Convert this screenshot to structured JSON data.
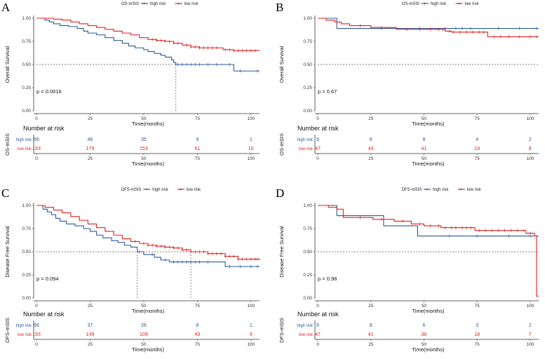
{
  "colors": {
    "high_risk": "#2b5a9a",
    "low_risk": "#e02020",
    "axis": "#333333",
    "reference": "#555555"
  },
  "shared": {
    "xlabel": "Time(months)",
    "risk_table_title": "Number at risk",
    "risk_table_times": [
      0,
      25,
      50,
      75,
      100
    ],
    "x_ticks": [
      0,
      25,
      50,
      75,
      100
    ],
    "y_ticks": [
      "0.00",
      "0.25",
      "0.50",
      "0.75",
      "1.00"
    ],
    "group_labels": [
      "high risk",
      "low risk"
    ]
  },
  "chart_data": [
    {
      "type": "line",
      "panel": "A",
      "legend_title": "OS-mSIS",
      "ylabel": "Overall Survival",
      "risk_ylabel": "OS-mSIS",
      "pvalue": "p = 0.0016",
      "xlim": [
        0,
        104
      ],
      "ylim": [
        0,
        1
      ],
      "median_lines": [
        65
      ],
      "series": [
        {
          "name": "high risk",
          "color": "#2b5a9a",
          "steps": [
            [
              0,
              1.0
            ],
            [
              4,
              0.98
            ],
            [
              6,
              0.96
            ],
            [
              8,
              0.94
            ],
            [
              11,
              0.92
            ],
            [
              15,
              0.91
            ],
            [
              19,
              0.89
            ],
            [
              22,
              0.86
            ],
            [
              24,
              0.84
            ],
            [
              28,
              0.82
            ],
            [
              32,
              0.79
            ],
            [
              36,
              0.76
            ],
            [
              40,
              0.73
            ],
            [
              43,
              0.7
            ],
            [
              46,
              0.68
            ],
            [
              50,
              0.66
            ],
            [
              52,
              0.64
            ],
            [
              55,
              0.62
            ],
            [
              58,
              0.6
            ],
            [
              60,
              0.58
            ],
            [
              63,
              0.55
            ],
            [
              64,
              0.52
            ],
            [
              65,
              0.5
            ],
            [
              92,
              0.43
            ],
            [
              104,
              0.43
            ]
          ],
          "censor": [
            66,
            68,
            70,
            72,
            74,
            76,
            80,
            84,
            90,
            95,
            103
          ]
        },
        {
          "name": "low risk",
          "color": "#e02020",
          "steps": [
            [
              0,
              1.0
            ],
            [
              8,
              0.99
            ],
            [
              12,
              0.98
            ],
            [
              16,
              0.96
            ],
            [
              20,
              0.94
            ],
            [
              24,
              0.92
            ],
            [
              28,
              0.9
            ],
            [
              32,
              0.88
            ],
            [
              36,
              0.86
            ],
            [
              40,
              0.84
            ],
            [
              44,
              0.82
            ],
            [
              48,
              0.79
            ],
            [
              52,
              0.77
            ],
            [
              56,
              0.76
            ],
            [
              60,
              0.75
            ],
            [
              64,
              0.73
            ],
            [
              68,
              0.71
            ],
            [
              72,
              0.69
            ],
            [
              76,
              0.68
            ],
            [
              82,
              0.68
            ],
            [
              87,
              0.66
            ],
            [
              92,
              0.65
            ],
            [
              104,
              0.65
            ]
          ],
          "censor": [
            54,
            56,
            58,
            60,
            62,
            64,
            66,
            70,
            72,
            74,
            76,
            78,
            80,
            82,
            84,
            88,
            90,
            92,
            94,
            96,
            98,
            100,
            102
          ]
        }
      ],
      "risk_table": {
        "high risk": [
          56,
          46,
          35,
          9,
          1
        ],
        "low risk": [
          193,
          179,
          153,
          61,
          10
        ]
      }
    },
    {
      "type": "line",
      "panel": "B",
      "legend_title": "OS-mSIS",
      "ylabel": "Overall Survival",
      "risk_ylabel": "OS-mSIS",
      "pvalue": "p = 0.67",
      "xlim": [
        0,
        104
      ],
      "ylim": [
        0,
        1
      ],
      "median_lines": [],
      "series": [
        {
          "name": "high risk",
          "color": "#2b5a9a",
          "steps": [
            [
              0,
              1.0
            ],
            [
              9,
              0.89
            ],
            [
              104,
              0.89
            ]
          ],
          "censor": [
            30,
            48,
            60,
            65,
            68,
            72,
            85,
            95,
            103
          ]
        },
        {
          "name": "low risk",
          "color": "#e02020",
          "steps": [
            [
              0,
              1.0
            ],
            [
              4,
              0.98
            ],
            [
              8,
              0.96
            ],
            [
              11,
              0.94
            ],
            [
              15,
              0.92
            ],
            [
              25,
              0.9
            ],
            [
              37,
              0.88
            ],
            [
              60,
              0.86
            ],
            [
              63,
              0.85
            ],
            [
              80,
              0.8
            ],
            [
              104,
              0.8
            ]
          ],
          "censor": [
            20,
            30,
            42,
            48,
            53,
            57,
            59,
            62,
            64,
            67,
            70,
            73,
            76,
            78,
            83,
            86,
            90,
            95,
            100,
            103
          ]
        }
      ],
      "risk_table": {
        "high risk": [
          9,
          8,
          8,
          4,
          2
        ],
        "low risk": [
          47,
          43,
          41,
          19,
          8
        ]
      }
    },
    {
      "type": "line",
      "panel": "C",
      "legend_title": "DFS-mSIS",
      "ylabel": "Disease Free Survival",
      "risk_ylabel": "DFS-mSIS",
      "pvalue": "p = 0.094",
      "xlim": [
        0,
        104
      ],
      "ylim": [
        0,
        1
      ],
      "median_lines": [
        47,
        72
      ],
      "series": [
        {
          "name": "high risk",
          "color": "#2b5a9a",
          "steps": [
            [
              0,
              1.0
            ],
            [
              3,
              0.96
            ],
            [
              5,
              0.93
            ],
            [
              7,
              0.9
            ],
            [
              9,
              0.86
            ],
            [
              11,
              0.83
            ],
            [
              14,
              0.8
            ],
            [
              18,
              0.78
            ],
            [
              22,
              0.75
            ],
            [
              25,
              0.72
            ],
            [
              28,
              0.68
            ],
            [
              31,
              0.65
            ],
            [
              35,
              0.62
            ],
            [
              38,
              0.6
            ],
            [
              41,
              0.57
            ],
            [
              44,
              0.55
            ],
            [
              47,
              0.5
            ],
            [
              50,
              0.47
            ],
            [
              55,
              0.44
            ],
            [
              58,
              0.41
            ],
            [
              62,
              0.39
            ],
            [
              88,
              0.34
            ],
            [
              104,
              0.34
            ]
          ],
          "censor": [
            48,
            54,
            60,
            64,
            66,
            68,
            70,
            72,
            74,
            76,
            80,
            90,
            95,
            100,
            103
          ]
        },
        {
          "name": "low risk",
          "color": "#e02020",
          "steps": [
            [
              0,
              1.0
            ],
            [
              4,
              0.98
            ],
            [
              8,
              0.95
            ],
            [
              12,
              0.92
            ],
            [
              16,
              0.88
            ],
            [
              20,
              0.84
            ],
            [
              24,
              0.8
            ],
            [
              28,
              0.76
            ],
            [
              32,
              0.72
            ],
            [
              36,
              0.68
            ],
            [
              40,
              0.64
            ],
            [
              44,
              0.61
            ],
            [
              48,
              0.59
            ],
            [
              52,
              0.57
            ],
            [
              56,
              0.56
            ],
            [
              60,
              0.55
            ],
            [
              64,
              0.54
            ],
            [
              68,
              0.52
            ],
            [
              72,
              0.5
            ],
            [
              80,
              0.48
            ],
            [
              88,
              0.45
            ],
            [
              94,
              0.42
            ],
            [
              104,
              0.41
            ]
          ],
          "censor": [
            46,
            50,
            52,
            54,
            56,
            58,
            60,
            62,
            64,
            66,
            68,
            70,
            72,
            74,
            76,
            78,
            80,
            82,
            84,
            86,
            88,
            90,
            92,
            94,
            96,
            98,
            100,
            102,
            103
          ]
        }
      ],
      "risk_table": {
        "high risk": [
          56,
          37,
          26,
          8,
          1
        ],
        "low risk": [
          193,
          149,
          109,
          49,
          9
        ]
      }
    },
    {
      "type": "line",
      "panel": "D",
      "legend_title": "DFS-mSIS",
      "ylabel": "Disease Free Survival",
      "risk_ylabel": "DFS-mSIS",
      "pvalue": "p = 0.98",
      "xlim": [
        0,
        104
      ],
      "ylim": [
        0,
        1
      ],
      "median_lines": [],
      "series": [
        {
          "name": "high risk",
          "color": "#2b5a9a",
          "steps": [
            [
              0,
              1.0
            ],
            [
              9,
              0.89
            ],
            [
              31,
              0.78
            ],
            [
              47,
              0.67
            ],
            [
              103,
              0.67
            ],
            [
              104,
              0.67
            ]
          ],
          "censor": [
            62,
            75,
            90,
            100
          ]
        },
        {
          "name": "low risk",
          "color": "#e02020",
          "steps": [
            [
              0,
              1.0
            ],
            [
              5,
              0.98
            ],
            [
              9,
              0.96
            ],
            [
              12,
              0.87
            ],
            [
              26,
              0.85
            ],
            [
              36,
              0.83
            ],
            [
              44,
              0.8
            ],
            [
              50,
              0.78
            ],
            [
              58,
              0.76
            ],
            [
              74,
              0.73
            ],
            [
              98,
              0.7
            ],
            [
              102,
              0.67
            ],
            [
              103,
              0.02
            ],
            [
              104,
              0.02
            ]
          ],
          "censor": [
            20,
            30,
            40,
            48,
            53,
            57,
            60,
            63,
            65,
            68,
            70,
            72,
            76,
            79,
            82,
            85,
            88,
            91,
            94,
            97,
            100
          ]
        }
      ],
      "risk_table": {
        "high risk": [
          9,
          8,
          6,
          3,
          2
        ],
        "low risk": [
          47,
          41,
          38,
          18,
          7
        ]
      }
    }
  ]
}
